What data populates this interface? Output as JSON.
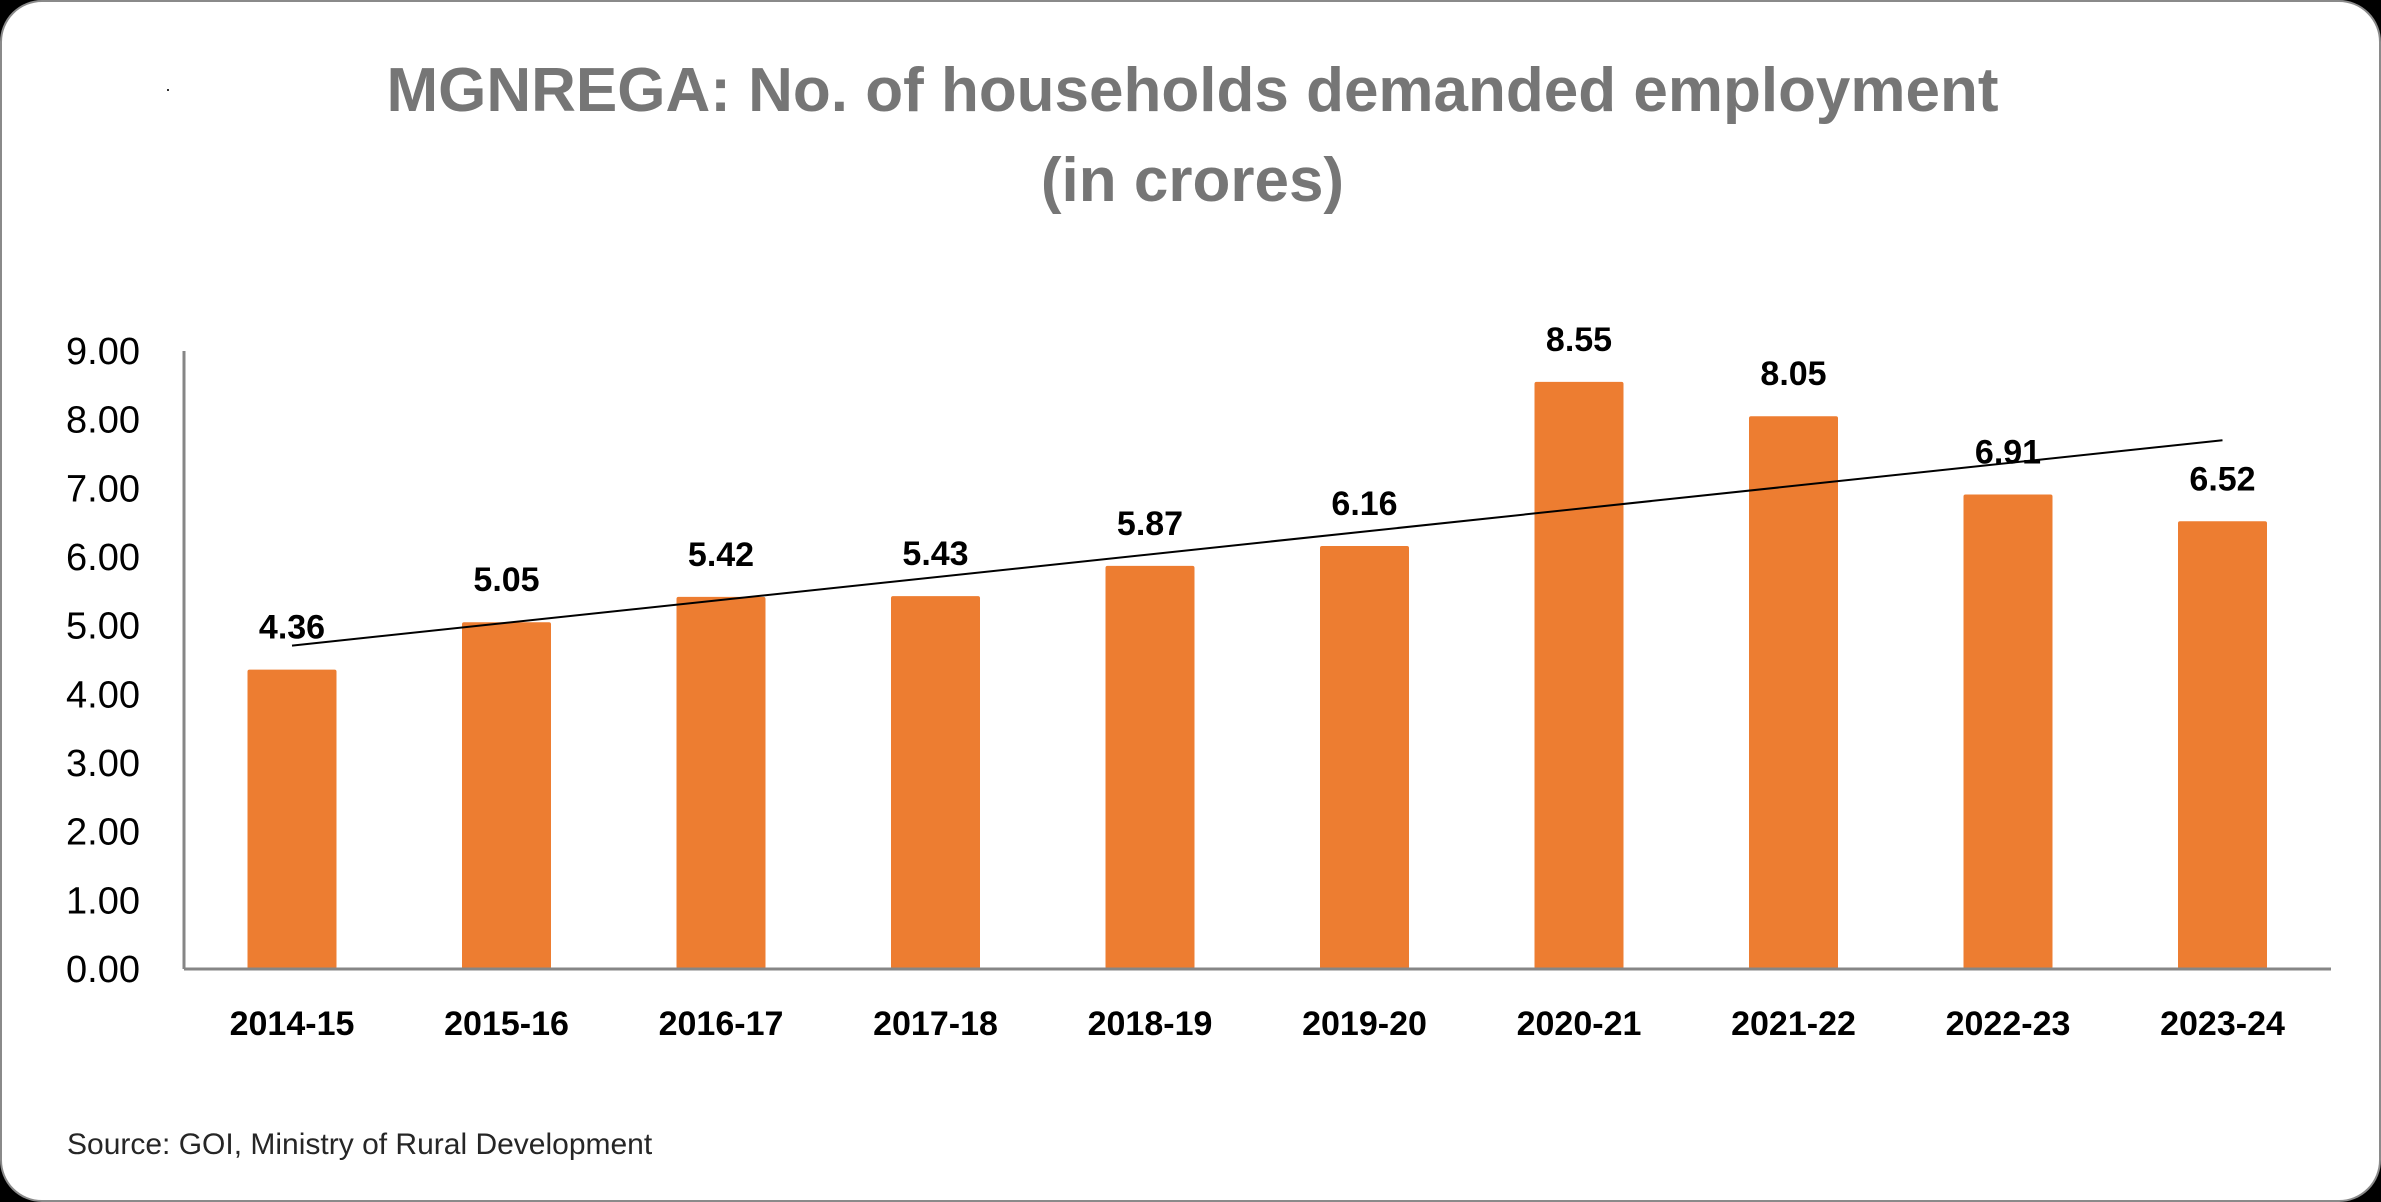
{
  "chart_data": {
    "type": "bar",
    "title": "MGNREGA: No. of households demanded employment",
    "subtitle": "(in crores)",
    "xlabel": "",
    "ylabel": "",
    "categories": [
      "2014-15",
      "2015-16",
      "2016-17",
      "2017-18",
      "2018-19",
      "2019-20",
      "2020-21",
      "2021-22",
      "2022-23",
      "2023-24"
    ],
    "values": [
      4.36,
      5.05,
      5.42,
      5.43,
      5.87,
      6.16,
      8.55,
      8.05,
      6.91,
      6.52
    ],
    "data_labels": [
      "4.36",
      "5.05",
      "5.42",
      "5.43",
      "5.87",
      "6.16",
      "8.55",
      "8.05",
      "6.91",
      "6.52"
    ],
    "ylim": [
      0,
      9
    ],
    "yticks": [
      "0.00",
      "1.00",
      "2.00",
      "3.00",
      "4.00",
      "5.00",
      "6.00",
      "7.00",
      "8.00",
      "9.00"
    ],
    "grid": false,
    "legend": "none",
    "bar_color": "#ED7D31",
    "trendline": {
      "type": "linear",
      "color": "#000000",
      "start_value": 4.71,
      "end_value": 7.7
    },
    "source": "Source: GOI, Ministry of Rural Development"
  }
}
